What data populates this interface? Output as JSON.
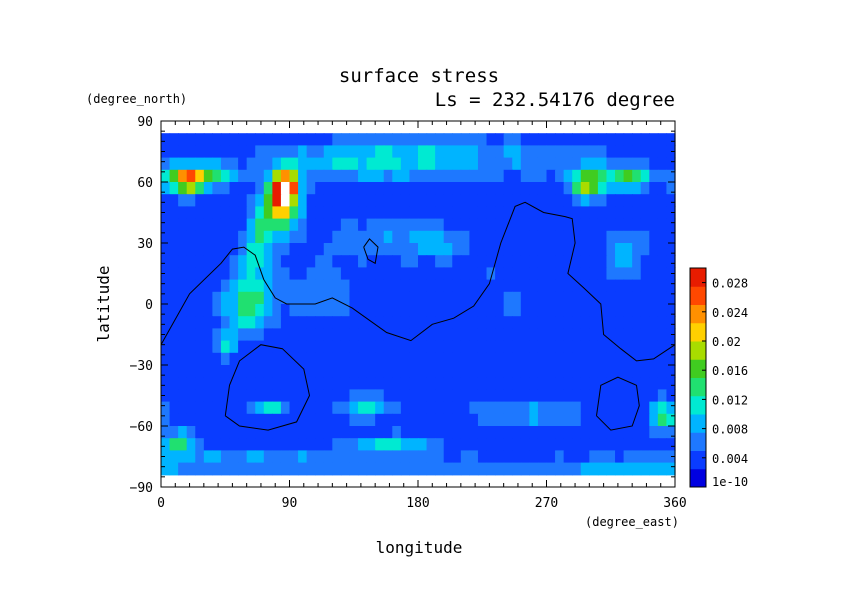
{
  "chart_data": {
    "type": "heatmap",
    "title": "surface stress",
    "subtitle": "Ls = 232.54176 degree",
    "xlabel": "longitude",
    "ylabel": "latitude",
    "x_units": "(degree_east)",
    "y_units": "(degree_north)",
    "xlim": [
      0,
      360
    ],
    "ylim": [
      -90,
      90
    ],
    "x_ticks": [
      "0",
      "90",
      "180",
      "270",
      "360"
    ],
    "y_ticks": [
      "90",
      "60",
      "30",
      "0",
      "−30",
      "−60",
      "−90"
    ],
    "colorbar": {
      "min": 0,
      "max": 0.03,
      "tick_values": [
        0,
        0.004,
        0.008,
        0.012,
        0.016,
        0.02,
        0.024,
        0.028
      ],
      "tick_labels": [
        "1e-10",
        "0.004",
        "0.008",
        "0.012",
        "0.016",
        "0.02",
        "0.024",
        "0.028"
      ],
      "colors": [
        "#0000e0",
        "#0a3cff",
        "#1e78ff",
        "#00b4ff",
        "#00ead2",
        "#20e070",
        "#40cc20",
        "#a8dc00",
        "#ffd000",
        "#ff9000",
        "#ff4800",
        "#e81c00"
      ]
    },
    "field": {
      "data_lat_range": [
        -84,
        84
      ],
      "background": 0.003,
      "highlight_color": "#ffffff",
      "blobs": [
        {
          "lon": 17,
          "lat": 61,
          "amp": 0.019,
          "slon": 11,
          "slat": 5
        },
        {
          "lon": 35,
          "lat": 64,
          "amp": 0.008,
          "slon": 14,
          "slat": 4
        },
        {
          "lon": 86,
          "lat": 53,
          "amp": 0.022,
          "slon": 8,
          "slat": 9
        },
        {
          "lon": 89,
          "lat": 58,
          "amp": 0.015,
          "slon": 5,
          "slat": 4
        },
        {
          "lon": 75,
          "lat": 40,
          "amp": 0.009,
          "slon": 9,
          "slat": 10
        },
        {
          "lon": 130,
          "lat": 70,
          "amp": 0.006,
          "slon": 40,
          "slat": 7
        },
        {
          "lon": 185,
          "lat": 72,
          "amp": 0.0045,
          "slon": 35,
          "slat": 8
        },
        {
          "lon": 300,
          "lat": 59,
          "amp": 0.017,
          "slon": 9,
          "slat": 5
        },
        {
          "lon": 328,
          "lat": 62,
          "amp": 0.013,
          "slon": 10,
          "slat": 4
        },
        {
          "lon": 270,
          "lat": 72,
          "amp": 0.004,
          "slon": 40,
          "slat": 7
        },
        {
          "lon": 60,
          "lat": 0,
          "amp": 0.011,
          "slon": 12,
          "slat": 10
        },
        {
          "lon": 65,
          "lat": 22,
          "amp": 0.008,
          "slon": 7,
          "slat": 8
        },
        {
          "lon": 45,
          "lat": -20,
          "amp": 0.009,
          "slon": 5,
          "slat": 4
        },
        {
          "lon": 110,
          "lat": 6,
          "amp": 0.004,
          "slon": 20,
          "slat": 10
        },
        {
          "lon": 160,
          "lat": 32,
          "amp": 0.004,
          "slon": 35,
          "slat": 8
        },
        {
          "lon": 75,
          "lat": -50,
          "amp": 0.008,
          "slon": 10,
          "slat": 3
        },
        {
          "lon": 145,
          "lat": -51,
          "amp": 0.008,
          "slon": 14,
          "slat": 4
        },
        {
          "lon": 160,
          "lat": -68,
          "amp": 0.008,
          "slon": 22,
          "slat": 3
        },
        {
          "lon": 250,
          "lat": -54,
          "amp": 0.005,
          "slon": 30,
          "slat": 5
        },
        {
          "lon": 14,
          "lat": -68,
          "amp": 0.011,
          "slon": 8,
          "slat": 4
        },
        {
          "lon": 352,
          "lat": -55,
          "amp": 0.009,
          "slon": 8,
          "slat": 6
        },
        {
          "lon": 60,
          "lat": -77,
          "amp": 0.005,
          "slon": 60,
          "slat": 3
        },
        {
          "lon": 200,
          "lat": -79,
          "amp": 0.004,
          "slon": 70,
          "slat": 3
        },
        {
          "lon": 330,
          "lat": -80,
          "amp": 0.005,
          "slon": 40,
          "slat": 3
        },
        {
          "lon": 325,
          "lat": 25,
          "amp": 0.005,
          "slon": 12,
          "slat": 10
        },
        {
          "lon": 193,
          "lat": 30,
          "amp": 0.004,
          "slon": 12,
          "slat": 5
        },
        {
          "lon": 240,
          "lat": 5,
          "amp": 0.002,
          "slon": 25,
          "slat": 15
        }
      ]
    },
    "contours": [
      {
        "name": "continent-west",
        "points": [
          [
            0,
            -20
          ],
          [
            20,
            5
          ],
          [
            42,
            20
          ],
          [
            50,
            27
          ],
          [
            58,
            28
          ],
          [
            66,
            24
          ],
          [
            72,
            12
          ],
          [
            80,
            3
          ],
          [
            88,
            0
          ],
          [
            108,
            0
          ],
          [
            120,
            3
          ],
          [
            134,
            -2
          ],
          [
            158,
            -14
          ],
          [
            175,
            -18
          ],
          [
            190,
            -10
          ],
          [
            205,
            -7
          ],
          [
            219,
            -1
          ],
          [
            230,
            10
          ],
          [
            238,
            30
          ],
          [
            248,
            48
          ],
          [
            255,
            50
          ],
          [
            268,
            45
          ],
          [
            283,
            43
          ],
          [
            288,
            42
          ],
          [
            290,
            30
          ],
          [
            285,
            15
          ],
          [
            296,
            8
          ],
          [
            308,
            0
          ],
          [
            310,
            -15
          ],
          [
            322,
            -22
          ],
          [
            333,
            -28
          ],
          [
            345,
            -27
          ],
          [
            360,
            -20
          ]
        ]
      },
      {
        "name": "island",
        "points": [
          [
            142,
            28
          ],
          [
            146,
            32
          ],
          [
            152,
            28
          ],
          [
            150,
            20
          ],
          [
            145,
            22
          ],
          [
            142,
            28
          ]
        ]
      },
      {
        "name": "basin-west",
        "points": [
          [
            45,
            -55
          ],
          [
            48,
            -40
          ],
          [
            55,
            -28
          ],
          [
            70,
            -20
          ],
          [
            85,
            -22
          ],
          [
            100,
            -32
          ],
          [
            104,
            -45
          ],
          [
            95,
            -58
          ],
          [
            75,
            -62
          ],
          [
            55,
            -60
          ],
          [
            45,
            -55
          ]
        ]
      },
      {
        "name": "basin-east",
        "points": [
          [
            305,
            -55
          ],
          [
            308,
            -40
          ],
          [
            320,
            -36
          ],
          [
            333,
            -40
          ],
          [
            335,
            -50
          ],
          [
            330,
            -60
          ],
          [
            315,
            -62
          ],
          [
            305,
            -55
          ]
        ]
      }
    ]
  }
}
